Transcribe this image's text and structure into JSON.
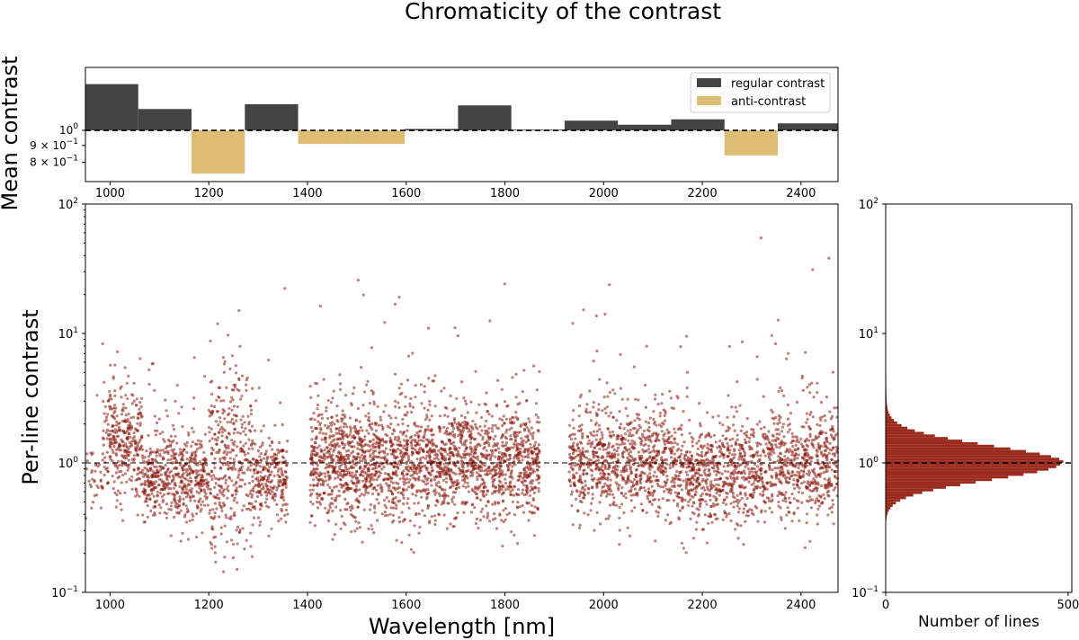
{
  "figure": {
    "title": "Chromaticity of the contrast"
  },
  "colors": {
    "regular": "#444444",
    "anti": "#dcbd73",
    "scatter": "#8b1a0f",
    "hist": "#9b2a1e"
  },
  "chart_data": [
    {
      "id": "mean-contrast",
      "type": "bar",
      "ylabel": "Mean contrast",
      "xlim": [
        950,
        2475
      ],
      "ylim_log": [
        0.7,
        1.55
      ],
      "baseline": 1.0,
      "yticks": [
        {
          "value": 1.0,
          "label": "10",
          "exp": "0"
        },
        {
          "value": 0.9,
          "label": "9 × 10",
          "exp": "−1"
        },
        {
          "value": 0.8,
          "label": "8 × 10",
          "exp": "−1"
        }
      ],
      "xticks": [
        1000,
        1200,
        1400,
        1600,
        1800,
        2000,
        2200,
        2400
      ],
      "legend": [
        {
          "label": "regular contrast",
          "kind": "regular"
        },
        {
          "label": "anti-contrast",
          "kind": "anti"
        }
      ],
      "bars": [
        {
          "x0": 950,
          "x1": 1057,
          "value": 1.38
        },
        {
          "x0": 1057,
          "x1": 1165,
          "value": 1.16
        },
        {
          "x0": 1165,
          "x1": 1273,
          "value": 0.74
        },
        {
          "x0": 1273,
          "x1": 1381,
          "value": 1.2
        },
        {
          "x0": 1381,
          "x1": 1489,
          "value": 0.91
        },
        {
          "x0": 1489,
          "x1": 1597,
          "value": 0.91
        },
        {
          "x0": 1597,
          "x1": 1705,
          "value": 1.01
        },
        {
          "x0": 1705,
          "x1": 1813,
          "value": 1.19
        },
        {
          "x0": 1813,
          "x1": 1921,
          "value": 1.005
        },
        {
          "x0": 1921,
          "x1": 2029,
          "value": 1.07
        },
        {
          "x0": 2029,
          "x1": 2137,
          "value": 1.04
        },
        {
          "x0": 2137,
          "x1": 2245,
          "value": 1.08
        },
        {
          "x0": 2245,
          "x1": 2353,
          "value": 0.84
        },
        {
          "x0": 2353,
          "x1": 2475,
          "value": 1.05
        }
      ]
    },
    {
      "id": "per-line-contrast",
      "type": "scatter",
      "xlabel": "Wavelength [nm]",
      "ylabel": "Per-line contrast",
      "xlim": [
        950,
        2475
      ],
      "ylim_log": [
        0.1,
        100
      ],
      "xticks": [
        1000,
        1200,
        1400,
        1600,
        1800,
        2000,
        2200,
        2400
      ],
      "yticks": [
        {
          "value": 100,
          "label": "10",
          "exp": "2"
        },
        {
          "value": 10,
          "label": "10",
          "exp": "1"
        },
        {
          "value": 1,
          "label": "10",
          "exp": "0"
        },
        {
          "value": 0.1,
          "label": "10",
          "exp": "−1"
        }
      ],
      "reference_line": 1.0,
      "point_count": 6000,
      "gaps_nm": [
        [
          1360,
          1405
        ],
        [
          1870,
          1930
        ]
      ],
      "segments": [
        {
          "x0": 950,
          "x1": 985,
          "median": 0.8,
          "spread": 0.12,
          "weight": 0.25
        },
        {
          "x0": 985,
          "x1": 1065,
          "median": 1.5,
          "spread": 0.2,
          "weight": 1.0
        },
        {
          "x0": 1065,
          "x1": 1200,
          "median": 0.78,
          "spread": 0.17,
          "weight": 1.0
        },
        {
          "x0": 1200,
          "x1": 1290,
          "median": 1.0,
          "spread": 0.38,
          "weight": 1.0
        },
        {
          "x0": 1290,
          "x1": 1360,
          "median": 0.78,
          "spread": 0.15,
          "weight": 0.9
        },
        {
          "x0": 1405,
          "x1": 1870,
          "median": 1.0,
          "spread": 0.22,
          "weight": 1.2
        },
        {
          "x0": 1930,
          "x1": 2150,
          "median": 1.03,
          "spread": 0.2,
          "weight": 1.0
        },
        {
          "x0": 2150,
          "x1": 2330,
          "median": 0.82,
          "spread": 0.2,
          "weight": 1.0
        },
        {
          "x0": 2330,
          "x1": 2475,
          "median": 1.02,
          "spread": 0.2,
          "weight": 1.0
        }
      ]
    },
    {
      "id": "line-histogram",
      "type": "bar",
      "orientation": "horizontal",
      "xlabel": "Number of lines",
      "xlim": [
        0,
        510
      ],
      "ylim_log": [
        0.1,
        100
      ],
      "xticks": [
        0,
        500
      ],
      "yticks": [
        {
          "value": 100,
          "label": "10",
          "exp": "2"
        },
        {
          "value": 10,
          "label": "10",
          "exp": "1"
        },
        {
          "value": 1,
          "label": "10",
          "exp": "0"
        },
        {
          "value": 0.1,
          "label": "10",
          "exp": "−1"
        }
      ],
      "reference_line": 1.0,
      "bins": 150,
      "peak_count": 480,
      "peak_at": 1.0,
      "log_sigma": 0.13
    }
  ]
}
